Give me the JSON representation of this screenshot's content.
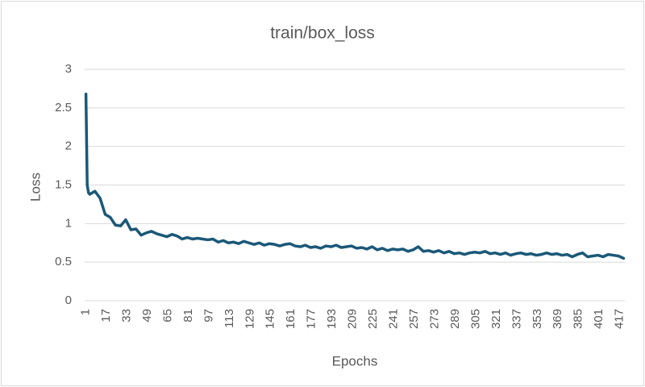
{
  "chart_data": {
    "type": "line",
    "title": "train/box_loss",
    "x_label": "Epochs",
    "y_label": "Loss",
    "x": [
      1,
      2,
      3,
      4,
      8,
      12,
      16,
      20,
      24,
      28,
      32,
      36,
      40,
      44,
      48,
      52,
      56,
      60,
      64,
      68,
      72,
      76,
      80,
      84,
      88,
      92,
      96,
      100,
      104,
      108,
      112,
      116,
      120,
      124,
      128,
      132,
      136,
      140,
      144,
      148,
      152,
      156,
      160,
      164,
      168,
      172,
      176,
      180,
      184,
      188,
      192,
      196,
      200,
      204,
      208,
      212,
      216,
      220,
      224,
      228,
      232,
      236,
      240,
      244,
      248,
      252,
      256,
      260,
      264,
      268,
      272,
      276,
      280,
      284,
      288,
      292,
      296,
      300,
      304,
      308,
      312,
      316,
      320,
      324,
      328,
      332,
      336,
      340,
      344,
      348,
      352,
      356,
      360,
      364,
      368,
      372,
      376,
      380,
      384,
      388,
      392,
      396,
      400,
      404,
      408,
      412,
      416,
      420
    ],
    "series": [
      {
        "name": "train/box_loss",
        "color": "#1b5878",
        "values": [
          2.68,
          1.5,
          1.4,
          1.38,
          1.42,
          1.33,
          1.12,
          1.08,
          0.98,
          0.97,
          1.05,
          0.92,
          0.93,
          0.85,
          0.88,
          0.9,
          0.87,
          0.85,
          0.83,
          0.86,
          0.84,
          0.8,
          0.82,
          0.8,
          0.81,
          0.8,
          0.79,
          0.8,
          0.76,
          0.78,
          0.75,
          0.76,
          0.74,
          0.77,
          0.75,
          0.73,
          0.75,
          0.72,
          0.74,
          0.73,
          0.71,
          0.73,
          0.74,
          0.71,
          0.7,
          0.72,
          0.69,
          0.7,
          0.68,
          0.71,
          0.7,
          0.72,
          0.69,
          0.7,
          0.71,
          0.68,
          0.69,
          0.67,
          0.7,
          0.66,
          0.68,
          0.65,
          0.67,
          0.66,
          0.67,
          0.64,
          0.66,
          0.7,
          0.64,
          0.65,
          0.63,
          0.65,
          0.62,
          0.64,
          0.61,
          0.62,
          0.6,
          0.62,
          0.63,
          0.62,
          0.64,
          0.61,
          0.62,
          0.6,
          0.62,
          0.59,
          0.61,
          0.62,
          0.6,
          0.61,
          0.59,
          0.6,
          0.62,
          0.6,
          0.61,
          0.59,
          0.6,
          0.57,
          0.6,
          0.62,
          0.57,
          0.58,
          0.59,
          0.57,
          0.6,
          0.59,
          0.58,
          0.55
        ]
      }
    ],
    "xlim": [
      0,
      421
    ],
    "xticks": [
      1,
      17,
      33,
      49,
      65,
      81,
      97,
      113,
      129,
      145,
      161,
      177,
      193,
      209,
      225,
      241,
      257,
      273,
      289,
      305,
      321,
      337,
      353,
      369,
      385,
      401,
      417
    ],
    "ylim": [
      0,
      3
    ],
    "yticks": [
      0,
      0.5,
      1,
      1.5,
      2,
      2.5,
      3
    ],
    "grid": true
  }
}
